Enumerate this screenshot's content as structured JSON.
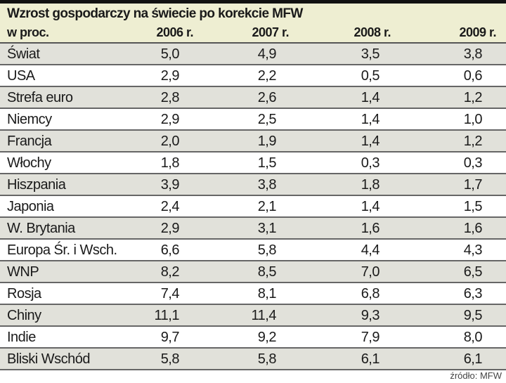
{
  "title": "Wzrost gospodarczy na świecie po korekcie MFW",
  "unit": "w proc.",
  "columns": [
    "2006 r.",
    "2007 r.",
    "2008 r.",
    "2009 r."
  ],
  "rows": [
    {
      "label": "Świat",
      "values": [
        "5,0",
        "4,9",
        "3,5",
        "3,8"
      ]
    },
    {
      "label": "USA",
      "values": [
        "2,9",
        "2,2",
        "0,5",
        "0,6"
      ]
    },
    {
      "label": "Strefa euro",
      "values": [
        "2,8",
        "2,6",
        "1,4",
        "1,2"
      ]
    },
    {
      "label": "Niemcy",
      "values": [
        "2,9",
        "2,5",
        "1,4",
        "1,0"
      ]
    },
    {
      "label": "Francja",
      "values": [
        "2,0",
        "1,9",
        "1,4",
        "1,2"
      ]
    },
    {
      "label": "Włochy",
      "values": [
        "1,8",
        "1,5",
        "0,3",
        "0,3"
      ]
    },
    {
      "label": "Hiszpania",
      "values": [
        "3,9",
        "3,8",
        "1,8",
        "1,7"
      ]
    },
    {
      "label": "Japonia",
      "values": [
        "2,4",
        "2,1",
        "1,4",
        "1,5"
      ]
    },
    {
      "label": "W. Brytania",
      "values": [
        "2,9",
        "3,1",
        "1,6",
        "1,6"
      ]
    },
    {
      "label": "Europa Śr. i Wsch.",
      "values": [
        "6,6",
        "5,8",
        "4,4",
        "4,3"
      ]
    },
    {
      "label": "WNP",
      "values": [
        "8,2",
        "8,5",
        "7,0",
        "6,5"
      ]
    },
    {
      "label": "Rosja",
      "values": [
        "7,4",
        "8,1",
        "6,8",
        "6,3"
      ]
    },
    {
      "label": "Chiny",
      "values": [
        "11,1",
        "11,4",
        "9,3",
        "9,5"
      ]
    },
    {
      "label": "Indie",
      "values": [
        "9,7",
        "9,2",
        "7,9",
        "8,0"
      ]
    },
    {
      "label": "Bliski Wschód",
      "values": [
        "5,8",
        "5,8",
        "6,1",
        "6,1"
      ]
    }
  ],
  "source": "źródło: MFW"
}
